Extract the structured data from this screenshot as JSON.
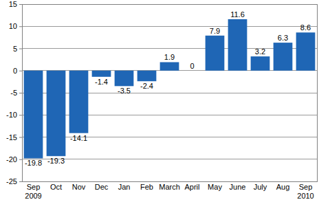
{
  "chart_data": {
    "type": "bar",
    "categories": [
      "Sep 2009",
      "Oct",
      "Nov",
      "Dec",
      "Jan",
      "Feb",
      "March",
      "April",
      "May",
      "June",
      "July",
      "Aug",
      "Sep 2010"
    ],
    "values": [
      -19.8,
      -19.3,
      -14.1,
      -1.4,
      -3.5,
      -2.4,
      1.9,
      0,
      7.9,
      11.6,
      3.2,
      6.3,
      8.6
    ],
    "color": "#1f66b5",
    "ylim": [
      -25,
      15
    ],
    "yticks": [
      -25,
      -20,
      -15,
      -10,
      -5,
      0,
      5,
      10,
      15
    ],
    "grid": true,
    "data_labels": true
  }
}
